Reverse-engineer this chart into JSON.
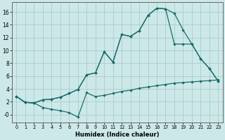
{
  "xlabel": "Humidex (Indice chaleur)",
  "background_color": "#cde8e8",
  "grid_color": "#aacccc",
  "line_color": "#1a6b6b",
  "xlim": [
    -0.5,
    23.5
  ],
  "ylim": [
    -1.2,
    17.5
  ],
  "xticks": [
    0,
    1,
    2,
    3,
    4,
    5,
    6,
    7,
    8,
    9,
    10,
    11,
    12,
    13,
    14,
    15,
    16,
    17,
    18,
    19,
    20,
    21,
    22,
    23
  ],
  "yticks": [
    0,
    2,
    4,
    6,
    8,
    10,
    12,
    14,
    16
  ],
  "ytick_labels": [
    "-0",
    "2",
    "4",
    "6",
    "8",
    "10",
    "12",
    "14",
    "16"
  ],
  "line1_x": [
    0,
    1,
    2,
    3,
    4,
    5,
    6,
    7,
    8,
    9,
    10,
    11,
    12,
    13,
    14,
    15,
    16,
    17,
    18,
    19,
    20,
    21,
    22,
    23
  ],
  "line1_y": [
    2.8,
    1.9,
    1.8,
    1.1,
    0.8,
    0.6,
    0.3,
    -0.4,
    3.4,
    2.8,
    3.0,
    3.3,
    3.6,
    3.8,
    4.1,
    4.3,
    4.5,
    4.7,
    4.9,
    5.0,
    5.1,
    5.2,
    5.3,
    5.4
  ],
  "line2_x": [
    0,
    1,
    2,
    3,
    4,
    5,
    6,
    7,
    8,
    9,
    10,
    11,
    12,
    13,
    14,
    15,
    16,
    17,
    18,
    19,
    20,
    21,
    22,
    23
  ],
  "line2_y": [
    2.8,
    1.9,
    1.8,
    2.3,
    2.4,
    2.7,
    3.3,
    3.9,
    6.2,
    6.5,
    9.8,
    8.2,
    12.5,
    12.2,
    13.1,
    15.5,
    16.6,
    16.5,
    15.8,
    13.2,
    11.0,
    8.7,
    7.2,
    5.2
  ],
  "line3_x": [
    0,
    1,
    2,
    3,
    4,
    5,
    6,
    7,
    8,
    9,
    10,
    11,
    12,
    13,
    14,
    15,
    16,
    17,
    18,
    19,
    20,
    21,
    22,
    23
  ],
  "line3_y": [
    2.8,
    1.9,
    1.8,
    2.3,
    2.4,
    2.7,
    3.3,
    3.9,
    6.2,
    6.5,
    9.8,
    8.2,
    12.5,
    12.2,
    13.1,
    15.5,
    16.6,
    16.5,
    11.0,
    11.0,
    11.0,
    8.7,
    7.2,
    5.2
  ]
}
